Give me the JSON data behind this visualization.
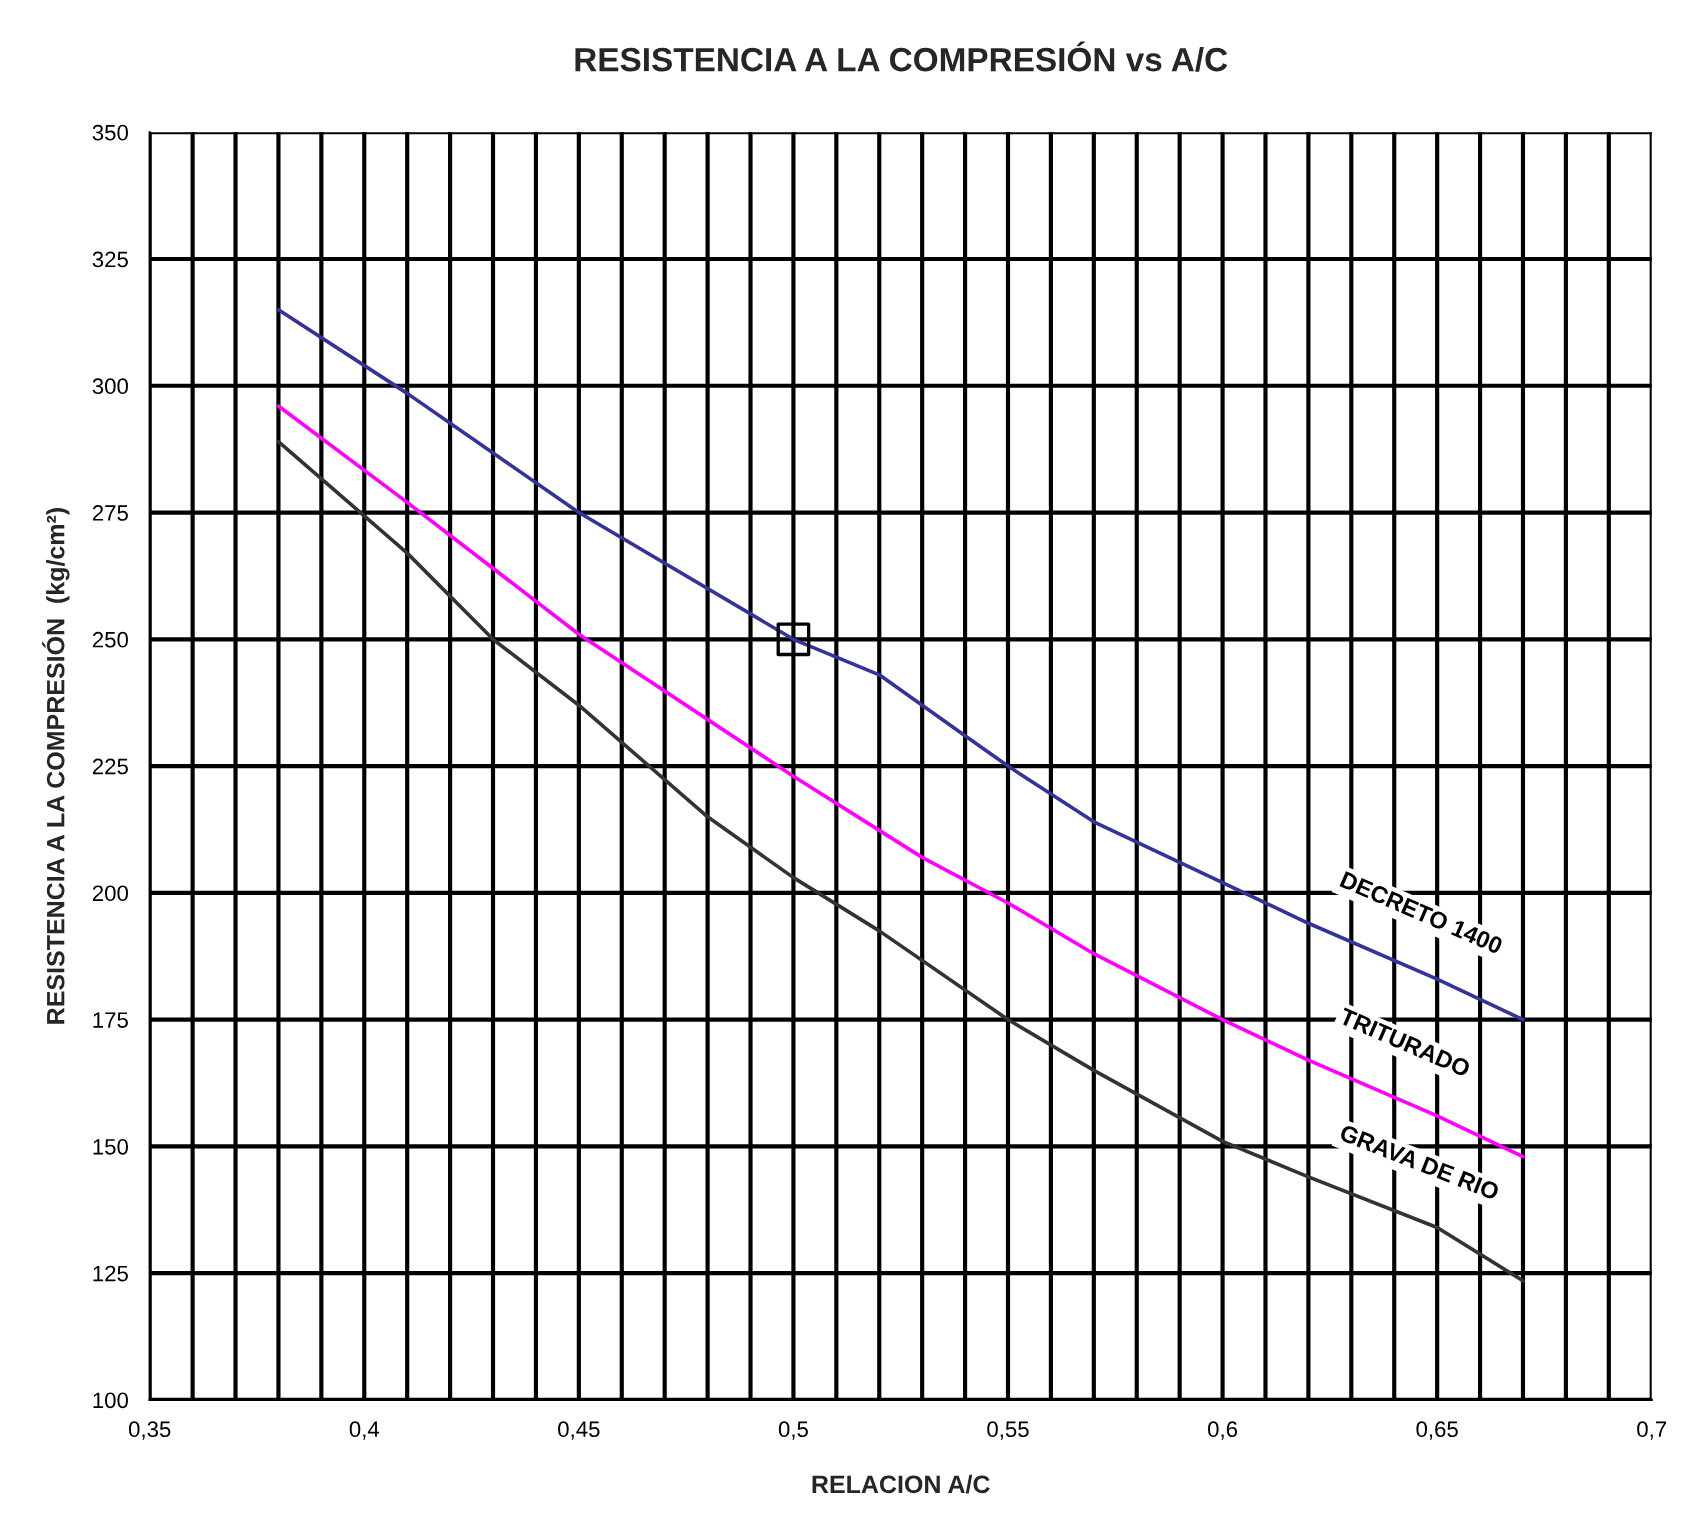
{
  "chart_data": {
    "type": "line",
    "title": "RESISTENCIA A LA COMPRESIÓN vs A/C",
    "xlabel": "RELACION A/C",
    "ylabel": "RESISTENCIA A LA COMPRESIÓN  (kg/cm²)",
    "xlim": [
      0.35,
      0.7
    ],
    "ylim": [
      100,
      350
    ],
    "xticks": [
      {
        "value": 0.35,
        "label": "0,35"
      },
      {
        "value": 0.36,
        "label": null
      },
      {
        "value": 0.37,
        "label": null
      },
      {
        "value": 0.38,
        "label": null
      },
      {
        "value": 0.39,
        "label": null
      },
      {
        "value": 0.4,
        "label": "0,4"
      },
      {
        "value": 0.41,
        "label": null
      },
      {
        "value": 0.42,
        "label": null
      },
      {
        "value": 0.43,
        "label": null
      },
      {
        "value": 0.44,
        "label": null
      },
      {
        "value": 0.45,
        "label": "0,45"
      },
      {
        "value": 0.46,
        "label": null
      },
      {
        "value": 0.47,
        "label": null
      },
      {
        "value": 0.48,
        "label": null
      },
      {
        "value": 0.49,
        "label": null
      },
      {
        "value": 0.5,
        "label": "0,5"
      },
      {
        "value": 0.51,
        "label": null
      },
      {
        "value": 0.52,
        "label": null
      },
      {
        "value": 0.53,
        "label": null
      },
      {
        "value": 0.54,
        "label": null
      },
      {
        "value": 0.55,
        "label": "0,55"
      },
      {
        "value": 0.56,
        "label": null
      },
      {
        "value": 0.57,
        "label": null
      },
      {
        "value": 0.58,
        "label": null
      },
      {
        "value": 0.59,
        "label": null
      },
      {
        "value": 0.6,
        "label": "0,6"
      },
      {
        "value": 0.61,
        "label": null
      },
      {
        "value": 0.62,
        "label": null
      },
      {
        "value": 0.63,
        "label": null
      },
      {
        "value": 0.64,
        "label": null
      },
      {
        "value": 0.65,
        "label": "0,65"
      },
      {
        "value": 0.66,
        "label": null
      },
      {
        "value": 0.67,
        "label": null
      },
      {
        "value": 0.68,
        "label": null
      },
      {
        "value": 0.69,
        "label": null
      },
      {
        "value": 0.7,
        "label": "0,7"
      }
    ],
    "yticks": [
      100,
      125,
      150,
      175,
      200,
      225,
      250,
      275,
      300,
      325,
      350
    ],
    "grid": true,
    "legend": false,
    "marker": "none",
    "line_style": "solid",
    "series": [
      {
        "name": "DECRETO 1400",
        "color": "#333399",
        "x": [
          0.38,
          0.41,
          0.45,
          0.5,
          0.52,
          0.54,
          0.55,
          0.57,
          0.6,
          0.62,
          0.65,
          0.67
        ],
        "values": [
          315,
          298.5,
          275,
          250,
          243,
          231,
          225,
          214,
          202,
          194,
          183,
          175
        ]
      },
      {
        "name": "TRITURADO",
        "color": "#ff00ff",
        "x": [
          0.38,
          0.41,
          0.45,
          0.5,
          0.53,
          0.55,
          0.57,
          0.6,
          0.62,
          0.65,
          0.67
        ],
        "values": [
          296,
          277,
          251,
          223,
          207,
          198,
          188,
          175,
          167,
          156,
          148
        ]
      },
      {
        "name": "GRAVA DE RIO",
        "color": "#333333",
        "x": [
          0.38,
          0.41,
          0.43,
          0.45,
          0.48,
          0.5,
          0.52,
          0.55,
          0.57,
          0.6,
          0.62,
          0.65,
          0.67
        ],
        "values": [
          289,
          267,
          250,
          237,
          215,
          203,
          192.5,
          175,
          165,
          151,
          144,
          134,
          123.5
        ]
      },
      {
        "type": "scatter",
        "marker": "square",
        "color": "#000000",
        "x": [
          0.5
        ],
        "values": [
          250
        ]
      }
    ]
  }
}
